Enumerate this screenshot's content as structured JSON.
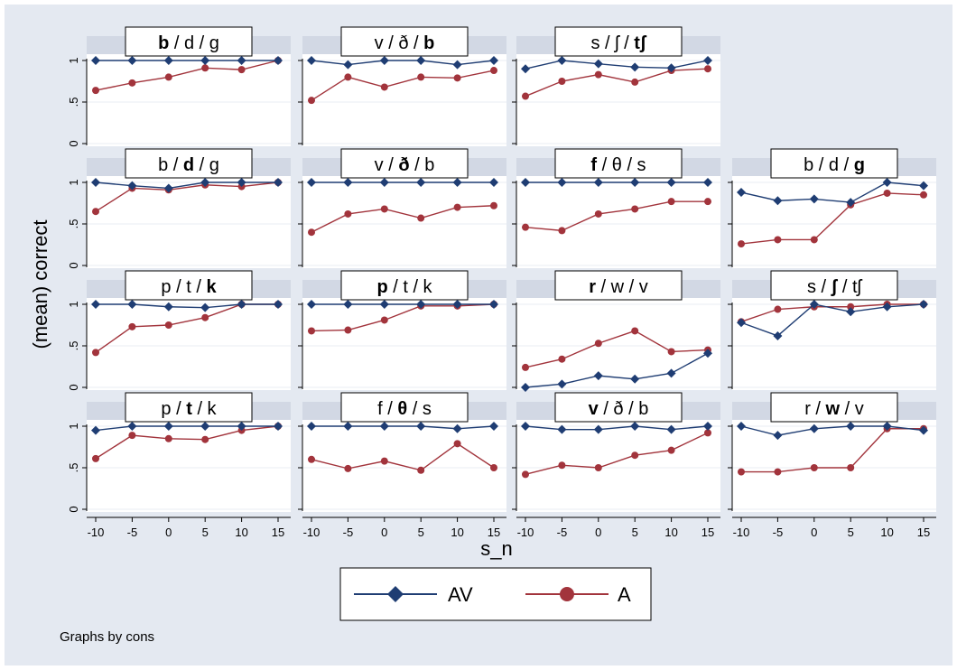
{
  "chart_data": {
    "type": "line",
    "layout": "small-multiples-4x4",
    "ylabel": "(mean) correct",
    "xlabel": "s_n",
    "x": [
      -10,
      -5,
      0,
      5,
      10,
      15
    ],
    "x_tick_labels": [
      "-10",
      "-5",
      "0",
      "5",
      "10",
      "15"
    ],
    "y_tick_labels": [
      "0",
      ".5",
      "1"
    ],
    "ylim": [
      0,
      1
    ],
    "legend": [
      {
        "name": "AV",
        "color": "#1f3d73",
        "marker": "diamond"
      },
      {
        "name": "A",
        "color": "#a2343c",
        "marker": "circle"
      }
    ],
    "note": "Graphs by cons",
    "panels": [
      {
        "row": 0,
        "col": 0,
        "title": [
          {
            "t": "b",
            "b": true
          },
          {
            "t": " / d / g",
            "b": false
          }
        ],
        "AV": [
          1,
          1,
          1,
          1,
          1,
          1
        ],
        "A": [
          0.64,
          0.73,
          0.8,
          0.91,
          0.89,
          1
        ]
      },
      {
        "row": 0,
        "col": 1,
        "title": [
          {
            "t": "v / ð / ",
            "b": false
          },
          {
            "t": "b",
            "b": true
          }
        ],
        "AV": [
          1,
          0.95,
          1,
          1,
          0.95,
          1
        ],
        "A": [
          0.52,
          0.8,
          0.68,
          0.8,
          0.79,
          0.88
        ]
      },
      {
        "row": 0,
        "col": 2,
        "title": [
          {
            "t": "s / ʃ / ",
            "b": false
          },
          {
            "t": "tʃ",
            "b": true
          }
        ],
        "AV": [
          0.9,
          1,
          0.96,
          0.92,
          0.91,
          1
        ],
        "A": [
          0.57,
          0.75,
          0.83,
          0.74,
          0.88,
          0.9
        ]
      },
      {
        "row": 1,
        "col": 0,
        "title": [
          {
            "t": "b / ",
            "b": false
          },
          {
            "t": "d",
            "b": true
          },
          {
            "t": " / g",
            "b": false
          }
        ],
        "AV": [
          1,
          0.96,
          0.93,
          1,
          1,
          1
        ],
        "A": [
          0.65,
          0.93,
          0.91,
          0.97,
          0.95,
          1
        ]
      },
      {
        "row": 1,
        "col": 1,
        "title": [
          {
            "t": "v / ",
            "b": false
          },
          {
            "t": "ð",
            "b": true
          },
          {
            "t": " / b",
            "b": false
          }
        ],
        "AV": [
          1,
          1,
          1,
          1,
          1,
          1
        ],
        "A": [
          0.4,
          0.62,
          0.68,
          0.57,
          0.7,
          0.72
        ]
      },
      {
        "row": 1,
        "col": 2,
        "title": [
          {
            "t": "f",
            "b": true
          },
          {
            "t": " / θ / s",
            "b": false
          }
        ],
        "AV": [
          1,
          1,
          1,
          1,
          1,
          1
        ],
        "A": [
          0.46,
          0.42,
          0.62,
          0.68,
          0.77,
          0.77
        ]
      },
      {
        "row": 1,
        "col": 3,
        "title": [
          {
            "t": "b / d / ",
            "b": false
          },
          {
            "t": "g",
            "b": true
          }
        ],
        "AV": [
          0.88,
          0.78,
          0.8,
          0.76,
          1,
          0.96
        ],
        "A": [
          0.26,
          0.31,
          0.31,
          0.73,
          0.87,
          0.85
        ]
      },
      {
        "row": 2,
        "col": 0,
        "title": [
          {
            "t": "p / t / ",
            "b": false
          },
          {
            "t": "k",
            "b": true
          }
        ],
        "AV": [
          1,
          1,
          0.97,
          0.96,
          1,
          1
        ],
        "A": [
          0.42,
          0.73,
          0.75,
          0.84,
          1,
          1
        ]
      },
      {
        "row": 2,
        "col": 1,
        "title": [
          {
            "t": "p",
            "b": true
          },
          {
            "t": " / t / k",
            "b": false
          }
        ],
        "AV": [
          1,
          1,
          1,
          1,
          1,
          1
        ],
        "A": [
          0.68,
          0.69,
          0.81,
          0.98,
          0.98,
          1
        ]
      },
      {
        "row": 2,
        "col": 2,
        "title": [
          {
            "t": "r",
            "b": true
          },
          {
            "t": " / w / v",
            "b": false
          }
        ],
        "AV": [
          0,
          0.04,
          0.14,
          0.1,
          0.17,
          0.41
        ],
        "A": [
          0.24,
          0.34,
          0.53,
          0.68,
          0.43,
          0.45
        ]
      },
      {
        "row": 2,
        "col": 3,
        "title": [
          {
            "t": "s / ",
            "b": false
          },
          {
            "t": "ʃ",
            "b": true
          },
          {
            "t": " / tʃ",
            "b": false
          }
        ],
        "AV": [
          0.78,
          0.62,
          1,
          0.91,
          0.97,
          1
        ],
        "A": [
          0.79,
          0.94,
          0.97,
          0.97,
          1,
          1
        ]
      },
      {
        "row": 3,
        "col": 0,
        "title": [
          {
            "t": "p / ",
            "b": false
          },
          {
            "t": "t",
            "b": true
          },
          {
            "t": " / k",
            "b": false
          }
        ],
        "AV": [
          0.95,
          1,
          1,
          1,
          1,
          1
        ],
        "A": [
          0.61,
          0.89,
          0.85,
          0.84,
          0.95,
          1
        ]
      },
      {
        "row": 3,
        "col": 1,
        "title": [
          {
            "t": "f / ",
            "b": false
          },
          {
            "t": "θ",
            "b": true
          },
          {
            "t": " / s",
            "b": false
          }
        ],
        "AV": [
          1,
          1,
          1,
          1,
          0.97,
          1
        ],
        "A": [
          0.6,
          0.49,
          0.58,
          0.47,
          0.79,
          0.5
        ]
      },
      {
        "row": 3,
        "col": 2,
        "title": [
          {
            "t": "v",
            "b": true
          },
          {
            "t": " / ð / b",
            "b": false
          }
        ],
        "AV": [
          1,
          0.96,
          0.96,
          1,
          0.96,
          1
        ],
        "A": [
          0.42,
          0.53,
          0.5,
          0.65,
          0.71,
          0.92
        ]
      },
      {
        "row": 3,
        "col": 3,
        "title": [
          {
            "t": "r / ",
            "b": false
          },
          {
            "t": "w",
            "b": true
          },
          {
            "t": " / v",
            "b": false
          }
        ],
        "AV": [
          1,
          0.89,
          0.97,
          1,
          1,
          0.95
        ],
        "A": [
          0.45,
          0.45,
          0.5,
          0.5,
          0.97,
          0.97
        ]
      }
    ]
  }
}
